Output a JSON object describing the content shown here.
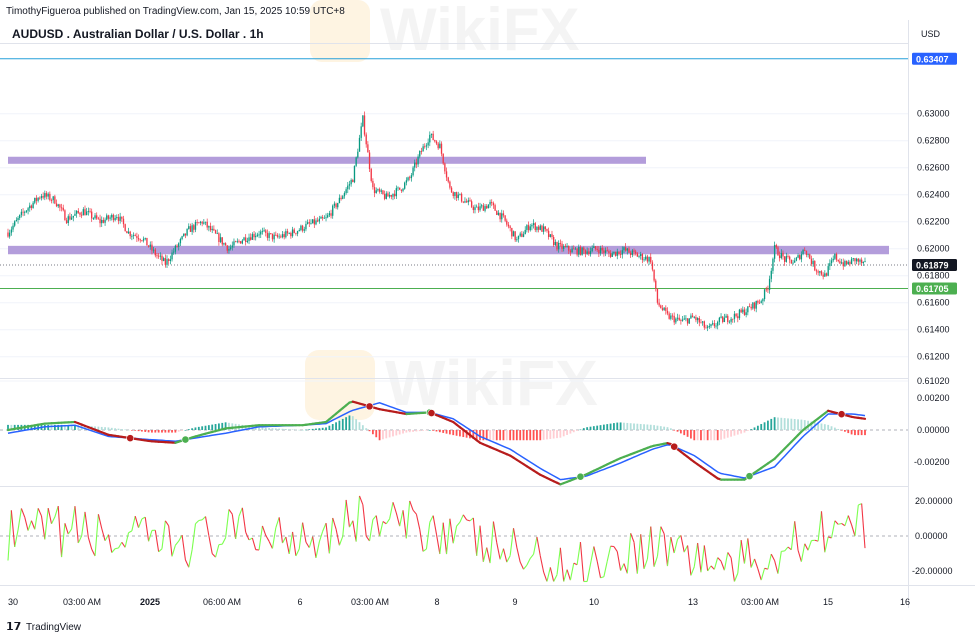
{
  "header": {
    "publisher": "TimothyFigueroa published on TradingView.com, Jan 15, 2025 10:59 UTC+8",
    "symbol_title": "AUDUSD . Australian Dollar / U.S. Dollar . 1h",
    "currency": "USD"
  },
  "watermark": "WikiFX",
  "footer": {
    "brand": "TradingView"
  },
  "colors": {
    "up": "#089981",
    "down": "#f23645",
    "zone": "#b39ddb",
    "level_line": "#2962ff",
    "support_line": "#4caf50",
    "macd_fast": "#4caf50",
    "macd_fast_down": "#b71c1c",
    "macd_signal": "#2962ff",
    "osc_up": "#7cff4f",
    "osc_down": "#f23645"
  },
  "chart_data": [
    {
      "type": "candlestick",
      "panel": "price",
      "x_ticks": [
        "30",
        "03:00 AM",
        "2025",
        "06:00 AM",
        "6",
        "03:00 AM",
        "8",
        "9",
        "10",
        "13",
        "03:00 AM",
        "15",
        "16"
      ],
      "y_ticks": [
        "0.63000",
        "0.62800",
        "0.62600",
        "0.62400",
        "0.62200",
        "0.62000",
        "0.61800",
        "0.61600",
        "0.61400",
        "0.61200",
        "0.61020"
      ],
      "ylim": [
        0.6102,
        0.6344
      ],
      "price_labels": [
        {
          "text": "0.63407",
          "value": 0.63407,
          "style": "blue"
        },
        {
          "text": "0.61879",
          "value": 0.61879,
          "style": "dark"
        },
        {
          "text": "0.61705",
          "value": 0.61705,
          "style": "green"
        }
      ],
      "zones": [
        {
          "low": 0.6264,
          "high": 0.6267
        },
        {
          "low": 0.6197,
          "high": 0.6201
        }
      ],
      "close_path": [
        [
          0,
          0.6212
        ],
        [
          10,
          0.6228
        ],
        [
          20,
          0.624
        ],
        [
          28,
          0.6236
        ],
        [
          35,
          0.6222
        ],
        [
          45,
          0.6228
        ],
        [
          55,
          0.622
        ],
        [
          65,
          0.6225
        ],
        [
          72,
          0.6212
        ],
        [
          80,
          0.6208
        ],
        [
          88,
          0.6196
        ],
        [
          94,
          0.6189
        ],
        [
          100,
          0.62
        ],
        [
          108,
          0.6214
        ],
        [
          116,
          0.622
        ],
        [
          124,
          0.621
        ],
        [
          132,
          0.62
        ],
        [
          140,
          0.6207
        ],
        [
          150,
          0.6212
        ],
        [
          160,
          0.6208
        ],
        [
          170,
          0.6212
        ],
        [
          180,
          0.6218
        ],
        [
          190,
          0.6222
        ],
        [
          198,
          0.6236
        ],
        [
          206,
          0.6252
        ],
        [
          212,
          0.6296
        ],
        [
          218,
          0.6244
        ],
        [
          226,
          0.6238
        ],
        [
          234,
          0.6244
        ],
        [
          240,
          0.6252
        ],
        [
          246,
          0.627
        ],
        [
          252,
          0.6284
        ],
        [
          258,
          0.6276
        ],
        [
          264,
          0.6244
        ],
        [
          272,
          0.6236
        ],
        [
          280,
          0.6229
        ],
        [
          288,
          0.6233
        ],
        [
          296,
          0.6222
        ],
        [
          304,
          0.6206
        ],
        [
          312,
          0.6218
        ],
        [
          320,
          0.6214
        ],
        [
          328,
          0.6202
        ],
        [
          336,
          0.6199
        ],
        [
          344,
          0.6198
        ],
        [
          352,
          0.62
        ],
        [
          360,
          0.6196
        ],
        [
          368,
          0.6199
        ],
        [
          376,
          0.6195
        ],
        [
          384,
          0.6192
        ],
        [
          388,
          0.616
        ],
        [
          394,
          0.615
        ],
        [
          402,
          0.6146
        ],
        [
          410,
          0.6149
        ],
        [
          418,
          0.614
        ],
        [
          426,
          0.6147
        ],
        [
          434,
          0.615
        ],
        [
          442,
          0.6155
        ],
        [
          450,
          0.6162
        ],
        [
          454,
          0.6172
        ],
        [
          458,
          0.62
        ],
        [
          464,
          0.6192
        ],
        [
          470,
          0.619
        ],
        [
          476,
          0.62
        ],
        [
          482,
          0.6186
        ],
        [
          488,
          0.618
        ],
        [
          494,
          0.6194
        ],
        [
          500,
          0.6188
        ],
        [
          506,
          0.6192
        ],
        [
          512,
          0.6188
        ]
      ]
    },
    {
      "type": "line",
      "panel": "macd",
      "y_ticks": [
        "0.00200",
        "0.00000",
        "-0.00200"
      ],
      "ylim": [
        -0.0033,
        0.003
      ],
      "series": [
        {
          "role": "fast",
          "values": [
            [
              0,
              0.0
            ],
            [
              22,
              0.0004
            ],
            [
              40,
              0.0005
            ],
            [
              60,
              -0.0003
            ],
            [
              85,
              -0.0007
            ],
            [
              100,
              -0.0008
            ],
            [
              112,
              -0.0004
            ],
            [
              130,
              0.0001
            ],
            [
              150,
              0.0003
            ],
            [
              176,
              0.0003
            ],
            [
              190,
              0.0005
            ],
            [
              205,
              0.0018
            ],
            [
              222,
              0.0013
            ],
            [
              238,
              0.001
            ],
            [
              252,
              0.0011
            ],
            [
              266,
              0.0005
            ],
            [
              282,
              -0.0008
            ],
            [
              300,
              -0.0016
            ],
            [
              318,
              -0.0028
            ],
            [
              330,
              -0.0034
            ],
            [
              345,
              -0.0028
            ],
            [
              365,
              -0.0018
            ],
            [
              385,
              -0.001
            ],
            [
              395,
              -0.0008
            ],
            [
              410,
              -0.002
            ],
            [
              425,
              -0.0031
            ],
            [
              440,
              -0.0031
            ],
            [
              458,
              -0.0018
            ],
            [
              475,
              0.0
            ],
            [
              490,
              0.0012
            ],
            [
              505,
              0.0008
            ],
            [
              512,
              0.0007
            ]
          ]
        },
        {
          "role": "signal",
          "values": [
            [
              0,
              -0.0002
            ],
            [
              22,
              0.0002
            ],
            [
              40,
              0.0003
            ],
            [
              60,
              -0.0004
            ],
            [
              85,
              -0.0006
            ],
            [
              100,
              -0.0007
            ],
            [
              112,
              -0.0005
            ],
            [
              130,
              -0.0002
            ],
            [
              150,
              0.0002
            ],
            [
              176,
              0.0003
            ],
            [
              190,
              0.0004
            ],
            [
              205,
              0.0012
            ],
            [
              222,
              0.0017
            ],
            [
              238,
              0.0011
            ],
            [
              252,
              0.0011
            ],
            [
              266,
              0.0007
            ],
            [
              282,
              -0.0004
            ],
            [
              300,
              -0.0012
            ],
            [
              318,
              -0.0024
            ],
            [
              330,
              -0.0031
            ],
            [
              345,
              -0.0029
            ],
            [
              365,
              -0.0021
            ],
            [
              385,
              -0.0012
            ],
            [
              395,
              -0.0009
            ],
            [
              410,
              -0.0016
            ],
            [
              425,
              -0.0027
            ],
            [
              440,
              -0.003
            ],
            [
              458,
              -0.0023
            ],
            [
              475,
              -0.0004
            ],
            [
              490,
              0.001
            ],
            [
              505,
              0.001
            ],
            [
              512,
              0.0009
            ]
          ]
        }
      ]
    },
    {
      "type": "line",
      "panel": "oscillator",
      "y_ticks": [
        "20.00000",
        "0.00000",
        "-20.00000"
      ],
      "ylim": [
        -28,
        26
      ]
    }
  ]
}
